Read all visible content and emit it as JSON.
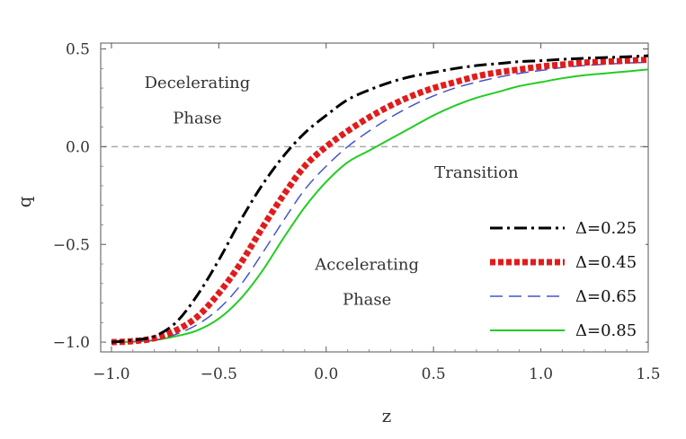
{
  "chart_data": {
    "type": "line",
    "title": "",
    "xlabel": "z",
    "ylabel": "q",
    "xlim": [
      -1.05,
      1.5
    ],
    "ylim": [
      -1.05,
      0.53
    ],
    "x_ticks": [
      -1.0,
      -0.5,
      0.0,
      0.5,
      1.0,
      1.5
    ],
    "x_tick_labels": [
      "−1.0",
      "−0.5",
      "0.0",
      "0.5",
      "1.0",
      "1.5"
    ],
    "y_ticks": [
      0.5,
      0.0,
      -0.5,
      -1.0
    ],
    "y_tick_labels": [
      "0.5",
      "0.0",
      "−0.5",
      "−1.0"
    ],
    "reference_line": {
      "y": 0.0,
      "style": "dashed",
      "color": "#aaaaaa"
    },
    "annotations": [
      {
        "text": "Decelerating",
        "x": -0.6,
        "y": 0.3
      },
      {
        "text": "Phase",
        "x": -0.6,
        "y": 0.12
      },
      {
        "text": "Transition",
        "x": 0.7,
        "y": -0.16
      },
      {
        "text": "Accelerating",
        "x": 0.19,
        "y": -0.63
      },
      {
        "text": "Phase",
        "x": 0.19,
        "y": -0.81
      }
    ],
    "legend_position": "bottom-right",
    "series": [
      {
        "name": "Δ=0.25",
        "color": "#000000",
        "dash": "14,5,3,5",
        "width": 3,
        "x": [
          -1.0,
          -0.9,
          -0.8,
          -0.7,
          -0.6,
          -0.5,
          -0.4,
          -0.3,
          -0.2,
          -0.1,
          0.0,
          0.1,
          0.2,
          0.3,
          0.4,
          0.5,
          0.6,
          0.7,
          0.8,
          0.9,
          1.0,
          1.1,
          1.2,
          1.3,
          1.4,
          1.5
        ],
        "y": [
          -1.0,
          -0.99,
          -0.97,
          -0.9,
          -0.76,
          -0.58,
          -0.38,
          -0.2,
          -0.05,
          0.07,
          0.16,
          0.24,
          0.29,
          0.33,
          0.36,
          0.38,
          0.4,
          0.415,
          0.425,
          0.435,
          0.44,
          0.447,
          0.452,
          0.456,
          0.46,
          0.465
        ]
      },
      {
        "name": "Δ=0.45",
        "color": "#e21b1b",
        "dash": "6,3",
        "width": 7,
        "x": [
          -1.0,
          -0.9,
          -0.8,
          -0.7,
          -0.6,
          -0.5,
          -0.4,
          -0.3,
          -0.2,
          -0.1,
          0.0,
          0.1,
          0.2,
          0.3,
          0.4,
          0.5,
          0.6,
          0.7,
          0.8,
          0.9,
          1.0,
          1.1,
          1.2,
          1.3,
          1.4,
          1.5
        ],
        "y": [
          -1.0,
          -0.995,
          -0.98,
          -0.94,
          -0.87,
          -0.75,
          -0.6,
          -0.42,
          -0.25,
          -0.1,
          0.0,
          0.08,
          0.15,
          0.21,
          0.26,
          0.3,
          0.33,
          0.36,
          0.38,
          0.395,
          0.41,
          0.42,
          0.43,
          0.435,
          0.44,
          0.445
        ]
      },
      {
        "name": "Δ=0.65",
        "color": "#4455cc",
        "dash": "14,7",
        "width": 1.5,
        "x": [
          -1.0,
          -0.9,
          -0.8,
          -0.7,
          -0.6,
          -0.5,
          -0.4,
          -0.3,
          -0.2,
          -0.1,
          0.0,
          0.1,
          0.2,
          0.3,
          0.4,
          0.5,
          0.6,
          0.7,
          0.8,
          0.9,
          1.0,
          1.1,
          1.2,
          1.3,
          1.4,
          1.5
        ],
        "y": [
          -1.0,
          -0.997,
          -0.99,
          -0.96,
          -0.91,
          -0.83,
          -0.71,
          -0.55,
          -0.38,
          -0.22,
          -0.1,
          0.0,
          0.08,
          0.15,
          0.21,
          0.26,
          0.3,
          0.33,
          0.355,
          0.375,
          0.39,
          0.405,
          0.415,
          0.422,
          0.428,
          0.432
        ]
      },
      {
        "name": "Δ=0.85",
        "color": "#22cc22",
        "dash": "",
        "width": 2,
        "x": [
          -1.0,
          -0.9,
          -0.8,
          -0.7,
          -0.6,
          -0.5,
          -0.4,
          -0.3,
          -0.2,
          -0.1,
          0.0,
          0.1,
          0.2,
          0.3,
          0.4,
          0.5,
          0.6,
          0.7,
          0.8,
          0.9,
          1.0,
          1.1,
          1.2,
          1.3,
          1.4,
          1.5
        ],
        "y": [
          -1.0,
          -0.998,
          -0.99,
          -0.97,
          -0.94,
          -0.88,
          -0.78,
          -0.64,
          -0.47,
          -0.31,
          -0.18,
          -0.08,
          -0.02,
          0.04,
          0.1,
          0.16,
          0.21,
          0.25,
          0.28,
          0.31,
          0.33,
          0.35,
          0.365,
          0.375,
          0.385,
          0.395
        ]
      }
    ]
  }
}
